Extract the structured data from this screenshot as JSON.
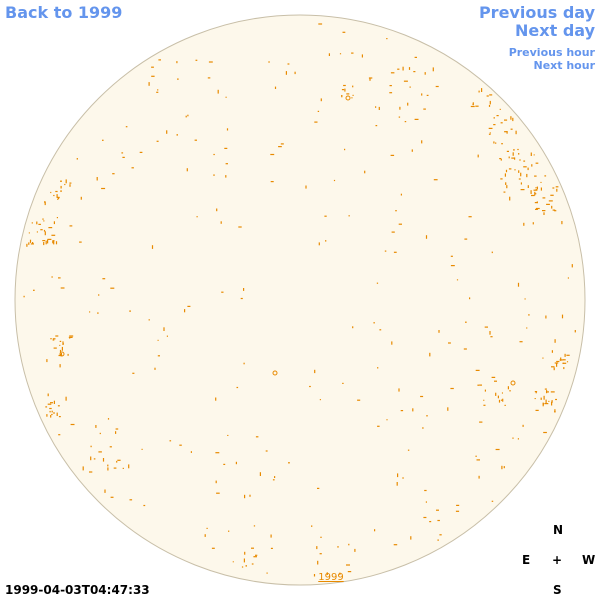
{
  "nav": {
    "back_label": "Back to 1999",
    "previous_day_label": "Previous day",
    "next_day_label": "Next day",
    "previous_hour_label": "Previous hour",
    "next_hour_label": "Next hour"
  },
  "disk": {
    "fill_color": "#fdf8eb",
    "outline_color": "#c8bfa8",
    "feature_color": "#e88a00",
    "year_label": "1999"
  },
  "compass": {
    "north": "N",
    "east": "E",
    "center": "+",
    "west": "W",
    "south": "S"
  },
  "timestamp": "1999-04-03T04:47:33"
}
